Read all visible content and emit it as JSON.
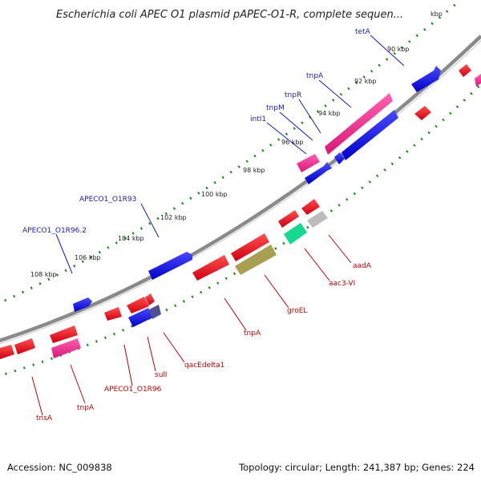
{
  "title": "Escherichia coli APEC O1 plasmid pAPEC-O1-R, complete sequen...",
  "footer": {
    "accession": "Accession: NC_009838",
    "summary": "Topology: circular; Length: 241,387 bp; Genes: 224"
  },
  "ticks": [
    "90 kbp",
    "92 kbp",
    "94 kbp",
    "96 kbp",
    "98 kbp",
    "100 kbp",
    "102 kbp",
    "104 kbp",
    "106 kbp",
    "108 kbp"
  ],
  "tick_partial": "kbp",
  "labels_forward": [
    "tetA",
    "tnpA",
    "tnpR",
    "tnpM",
    "intI1",
    "APECO1_O1R93",
    "APECO1_O1R96.2"
  ],
  "labels_reverse": [
    "aadA",
    "aac3-VI",
    "groEL",
    "tnpA",
    "qacEdelta1",
    "sulI",
    "APECO1_O1R96",
    "tnpA",
    "tnsA"
  ],
  "colors": {
    "backbone": "#8a8a8a",
    "gene_forward": "#0a0ae0",
    "gene_reverse": "#e8101a",
    "gene_pink": "#e8288a",
    "gene_olive": "#a8a050",
    "gene_green": "#18d890",
    "gene_gray": "#bcbcbc",
    "gene_slate": "#505090",
    "tick_marks": "#1a8a1a",
    "label_forward": "#1a1ab8",
    "label_reverse": "#c00000"
  }
}
